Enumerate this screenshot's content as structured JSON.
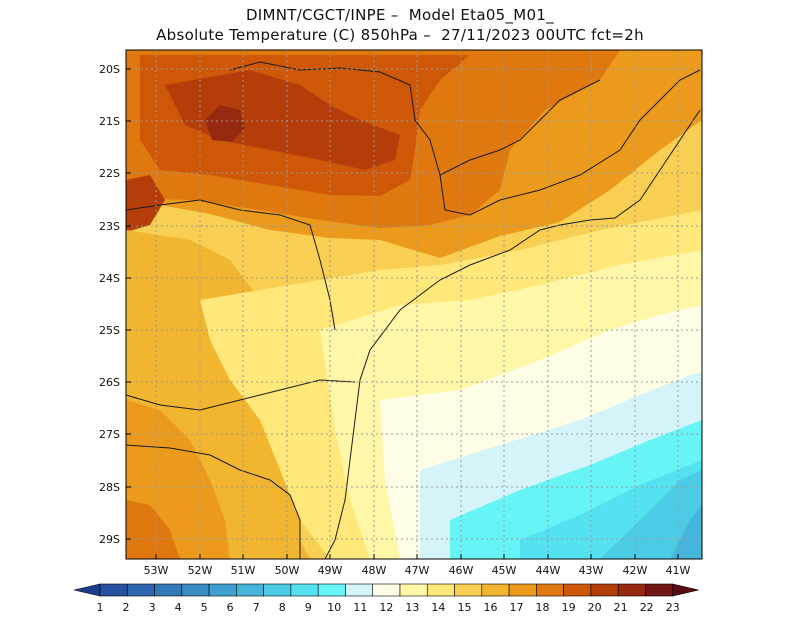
{
  "header": {
    "line1": "DIMNT/CGCT/INPE –  Model Eta05_M01_",
    "line2": "Absolute Temperature (C) 850hPa –  27/11/2023 00UTC fct=2h"
  },
  "map": {
    "lat_labels": [
      "20S",
      "21S",
      "22S",
      "23S",
      "24S",
      "25S",
      "26S",
      "27S",
      "28S",
      "29S"
    ],
    "lon_labels": [
      "53W",
      "52W",
      "51W",
      "50W",
      "49W",
      "48W",
      "47W",
      "46W",
      "45W",
      "44W",
      "43W",
      "42W",
      "41W"
    ],
    "grid": "dotted",
    "region": "Southern and southeastern Brazil"
  },
  "colorbar": {
    "ticks": [
      "1",
      "2",
      "3",
      "4",
      "5",
      "6",
      "7",
      "8",
      "9",
      "10",
      "11",
      "12",
      "13",
      "14",
      "15",
      "16",
      "17",
      "18",
      "19",
      "20",
      "21",
      "22",
      "23"
    ],
    "colors": [
      "#1c3c8c",
      "#2850a0",
      "#2e65b0",
      "#3478b8",
      "#3a8cc4",
      "#3fa0d0",
      "#45b5dc",
      "#4ccbe6",
      "#55e2f0",
      "#66f4f6",
      "#d4f4fa",
      "#fffde6",
      "#fff7a8",
      "#ffe779",
      "#f8cf52",
      "#f2b52f",
      "#eb9a1c",
      "#e07810",
      "#cf5708",
      "#b53d0a",
      "#952a10",
      "#731714",
      "#5a0a10"
    ]
  }
}
